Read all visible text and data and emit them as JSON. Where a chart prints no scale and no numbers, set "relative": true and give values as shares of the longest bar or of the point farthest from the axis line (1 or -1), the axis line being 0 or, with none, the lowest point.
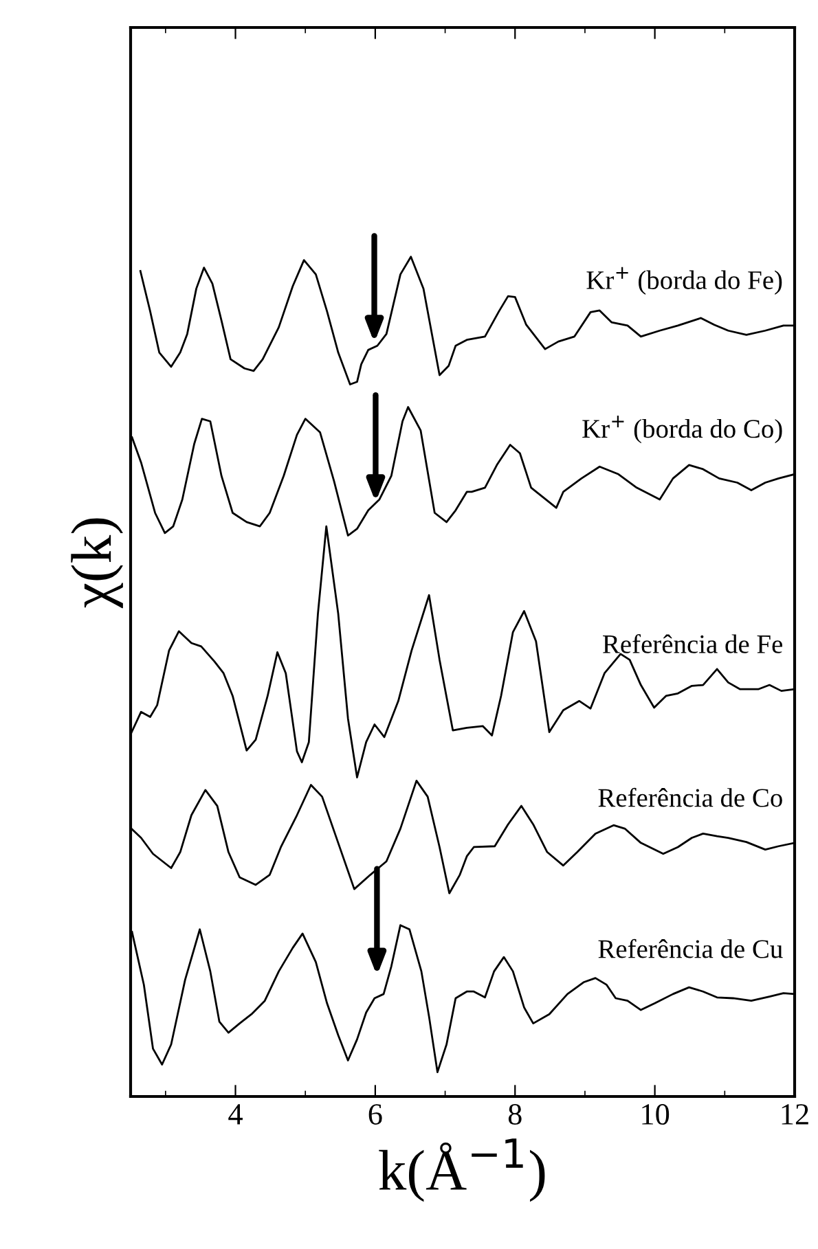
{
  "chart_data": {
    "type": "line",
    "xlabel": "k(Å$^{−1}$)",
    "ylabel": "χ(k)",
    "relative": true,
    "xlim": [
      2.5,
      12
    ],
    "xticks": [
      4,
      6,
      8,
      10,
      12
    ],
    "grid": false,
    "legend": false,
    "marker": "none",
    "line_style": "solid",
    "series": [
      {
        "name": "Kr$^{+}$ (borda do Fe)",
        "color": "#000000",
        "x": [
          2.64,
          2.78,
          2.91,
          3.08,
          3.21,
          3.31,
          3.44,
          3.55,
          3.67,
          3.8,
          3.93,
          4.13,
          4.26,
          4.39,
          4.62,
          4.82,
          4.98,
          5.15,
          5.31,
          5.47,
          5.64,
          5.74,
          5.8,
          5.9,
          6.03,
          6.16,
          6.36,
          6.51,
          6.69,
          6.92,
          7.05,
          7.15,
          7.31,
          7.57,
          7.77,
          7.9,
          8.0,
          8.16,
          8.43,
          8.62,
          8.85,
          9.08,
          9.21,
          9.38,
          9.61,
          9.8,
          10.07,
          10.33,
          10.66,
          10.85,
          11.05,
          11.31,
          11.58,
          11.84,
          12.0
        ],
        "values": [
          0.983,
          0.935,
          0.886,
          0.869,
          0.886,
          0.908,
          0.962,
          0.987,
          0.968,
          0.924,
          0.878,
          0.867,
          0.864,
          0.878,
          0.916,
          0.965,
          0.996,
          0.979,
          0.935,
          0.886,
          0.848,
          0.851,
          0.872,
          0.889,
          0.894,
          0.908,
          0.979,
          1,
          0.962,
          0.859,
          0.87,
          0.894,
          0.901,
          0.905,
          0.935,
          0.953,
          0.952,
          0.919,
          0.89,
          0.899,
          0.905,
          0.934,
          0.936,
          0.922,
          0.918,
          0.905,
          0.912,
          0.918,
          0.927,
          0.919,
          0.912,
          0.907,
          0.912,
          0.918,
          0.918
        ]
      },
      {
        "name": "Kr$^{+}$ (borda do Co)",
        "color": "#000000",
        "x": [
          2.52,
          2.65,
          2.85,
          2.99,
          3.11,
          3.24,
          3.41,
          3.52,
          3.64,
          3.8,
          3.96,
          4.16,
          4.35,
          4.49,
          4.69,
          4.88,
          5.0,
          5.21,
          5.41,
          5.61,
          5.74,
          5.9,
          6.06,
          6.23,
          6.39,
          6.47,
          6.65,
          6.85,
          7.02,
          7.15,
          7.31,
          7.38,
          7.57,
          7.74,
          7.93,
          8.07,
          8.23,
          8.59,
          8.69,
          8.95,
          9.21,
          9.48,
          9.74,
          10.07,
          10.26,
          10.49,
          10.69,
          10.92,
          11.18,
          11.38,
          11.58,
          11.77,
          12.0
        ],
        "values": [
          0.785,
          0.755,
          0.695,
          0.671,
          0.679,
          0.711,
          0.777,
          0.807,
          0.804,
          0.739,
          0.695,
          0.684,
          0.679,
          0.695,
          0.739,
          0.788,
          0.807,
          0.791,
          0.733,
          0.668,
          0.676,
          0.698,
          0.711,
          0.739,
          0.804,
          0.821,
          0.793,
          0.695,
          0.684,
          0.698,
          0.72,
          0.72,
          0.725,
          0.752,
          0.776,
          0.766,
          0.725,
          0.701,
          0.72,
          0.736,
          0.75,
          0.741,
          0.725,
          0.711,
          0.736,
          0.752,
          0.747,
          0.736,
          0.731,
          0.722,
          0.731,
          0.736,
          0.741
        ]
      },
      {
        "name": "Referência de Fe",
        "color": "#000000",
        "x": [
          2.51,
          2.65,
          2.78,
          2.88,
          3.05,
          3.19,
          3.37,
          3.51,
          3.7,
          3.83,
          3.96,
          4.16,
          4.29,
          4.46,
          4.6,
          4.72,
          4.88,
          4.95,
          5.05,
          5.18,
          5.3,
          5.47,
          5.61,
          5.74,
          5.87,
          5.99,
          6.13,
          6.33,
          6.52,
          6.77,
          6.92,
          7.11,
          7.31,
          7.54,
          7.67,
          7.8,
          7.97,
          8.13,
          8.3,
          8.49,
          8.69,
          8.92,
          9.08,
          9.28,
          9.51,
          9.64,
          9.8,
          9.99,
          10.16,
          10.33,
          10.53,
          10.69,
          10.89,
          11.05,
          11.22,
          11.48,
          11.64,
          11.81,
          12.0
        ],
        "values": [
          0.433,
          0.458,
          0.452,
          0.466,
          0.531,
          0.554,
          0.54,
          0.536,
          0.518,
          0.504,
          0.477,
          0.412,
          0.425,
          0.477,
          0.529,
          0.504,
          0.411,
          0.398,
          0.422,
          0.575,
          0.679,
          0.575,
          0.45,
          0.38,
          0.422,
          0.443,
          0.428,
          0.471,
          0.531,
          0.597,
          0.52,
          0.436,
          0.439,
          0.441,
          0.43,
          0.477,
          0.553,
          0.578,
          0.542,
          0.434,
          0.46,
          0.471,
          0.462,
          0.504,
          0.527,
          0.52,
          0.49,
          0.463,
          0.477,
          0.48,
          0.489,
          0.49,
          0.509,
          0.493,
          0.485,
          0.485,
          0.49,
          0.483,
          0.485
        ]
      },
      {
        "name": "Referência de Co",
        "color": "#000000",
        "x": [
          2.51,
          2.65,
          2.82,
          3.08,
          3.21,
          3.37,
          3.57,
          3.74,
          3.9,
          4.06,
          4.29,
          4.49,
          4.65,
          4.88,
          5.08,
          5.24,
          5.47,
          5.7,
          5.93,
          6.16,
          6.36,
          6.59,
          6.75,
          6.92,
          7.06,
          7.21,
          7.31,
          7.41,
          7.71,
          7.9,
          8.09,
          8.26,
          8.46,
          8.69,
          8.89,
          9.15,
          9.41,
          9.57,
          9.8,
          10.12,
          10.33,
          10.53,
          10.69,
          10.89,
          11.05,
          11.31,
          11.58,
          11.77,
          12.0
        ],
        "values": [
          0.319,
          0.308,
          0.289,
          0.272,
          0.291,
          0.335,
          0.365,
          0.346,
          0.291,
          0.261,
          0.252,
          0.264,
          0.297,
          0.335,
          0.371,
          0.357,
          0.302,
          0.247,
          0.264,
          0.28,
          0.319,
          0.376,
          0.357,
          0.297,
          0.242,
          0.264,
          0.286,
          0.297,
          0.298,
          0.324,
          0.346,
          0.324,
          0.291,
          0.275,
          0.291,
          0.313,
          0.323,
          0.319,
          0.302,
          0.289,
          0.297,
          0.308,
          0.313,
          0.31,
          0.308,
          0.303,
          0.294,
          0.298,
          0.302
        ]
      },
      {
        "name": "Referência de Cu",
        "color": "#000000",
        "x": [
          2.52,
          2.69,
          2.82,
          2.95,
          3.08,
          3.28,
          3.49,
          3.64,
          3.77,
          3.9,
          4.06,
          4.23,
          4.42,
          4.62,
          4.82,
          4.96,
          5.15,
          5.31,
          5.47,
          5.61,
          5.74,
          5.87,
          5.99,
          6.12,
          6.23,
          6.36,
          6.49,
          6.66,
          6.77,
          6.89,
          7.02,
          7.15,
          7.31,
          7.41,
          7.57,
          7.7,
          7.84,
          7.97,
          8.13,
          8.26,
          8.49,
          8.75,
          8.98,
          9.15,
          9.31,
          9.44,
          9.61,
          9.8,
          10.0,
          10.26,
          10.49,
          10.69,
          10.89,
          11.12,
          11.38,
          11.64,
          11.84,
          12.0
        ],
        "values": [
          0.196,
          0.133,
          0.057,
          0.038,
          0.062,
          0.139,
          0.199,
          0.149,
          0.089,
          0.076,
          0.087,
          0.098,
          0.114,
          0.149,
          0.177,
          0.194,
          0.16,
          0.111,
          0.073,
          0.043,
          0.068,
          0.1,
          0.117,
          0.122,
          0.155,
          0.204,
          0.199,
          0.149,
          0.095,
          0.029,
          0.062,
          0.117,
          0.125,
          0.125,
          0.118,
          0.149,
          0.166,
          0.149,
          0.106,
          0.087,
          0.098,
          0.122,
          0.136,
          0.141,
          0.133,
          0.117,
          0.114,
          0.103,
          0.111,
          0.122,
          0.13,
          0.125,
          0.118,
          0.117,
          0.114,
          0.119,
          0.123,
          0.122
        ]
      }
    ]
  }
}
